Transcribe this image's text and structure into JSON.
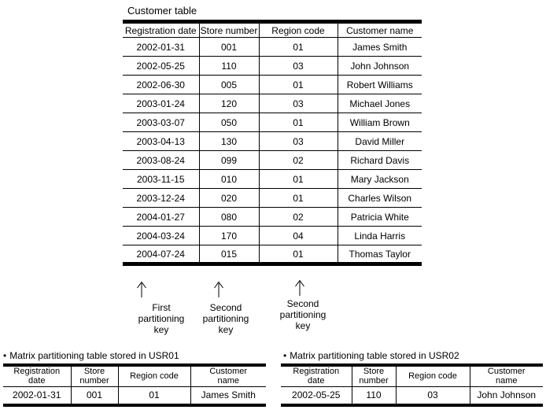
{
  "colors": {
    "ink": "#000000",
    "background": "#ffffff"
  },
  "main_table": {
    "title": "Customer table",
    "headers": [
      "Registration date",
      "Store number",
      "Region code",
      "Customer name"
    ],
    "rows": [
      [
        "2002-01-31",
        "001",
        "01",
        "James Smith"
      ],
      [
        "2002-05-25",
        "110",
        "03",
        "John Johnson"
      ],
      [
        "2002-06-30",
        "005",
        "01",
        "Robert Williams"
      ],
      [
        "2003-01-24",
        "120",
        "03",
        "Michael Jones"
      ],
      [
        "2003-03-07",
        "050",
        "01",
        "William Brown"
      ],
      [
        "2003-04-13",
        "130",
        "03",
        "David Miller"
      ],
      [
        "2003-08-24",
        "099",
        "02",
        "Richard Davis"
      ],
      [
        "2003-11-15",
        "010",
        "01",
        "Mary Jackson"
      ],
      [
        "2003-12-24",
        "020",
        "01",
        "Charles Wilson"
      ],
      [
        "2004-01-27",
        "080",
        "02",
        "Patricia White"
      ],
      [
        "2004-03-24",
        "170",
        "04",
        "Linda Harris"
      ],
      [
        "2004-07-24",
        "015",
        "01",
        "Thomas Taylor"
      ]
    ]
  },
  "partition_keys": [
    {
      "label": "First\npartitioning\nkey"
    },
    {
      "label": "Second\npartitioning\nkey"
    },
    {
      "label": "Second\npartitioning\nkey"
    }
  ],
  "matrix_tables": [
    {
      "bullet": "•",
      "title": "Matrix partitioning table stored in USR01",
      "headers": [
        "Registration\ndate",
        "Store\nnumber",
        "Region code",
        "Customer\nname"
      ],
      "rows": [
        [
          "2002-01-31",
          "001",
          "01",
          "James Smith"
        ]
      ]
    },
    {
      "bullet": "•",
      "title": "Matrix partitioning table stored in USR02",
      "headers": [
        "Registration\ndate",
        "Store\nnumber",
        "Region code",
        "Customer\nname"
      ],
      "rows": [
        [
          "2002-05-25",
          "110",
          "03",
          "John Johnson"
        ]
      ]
    }
  ]
}
